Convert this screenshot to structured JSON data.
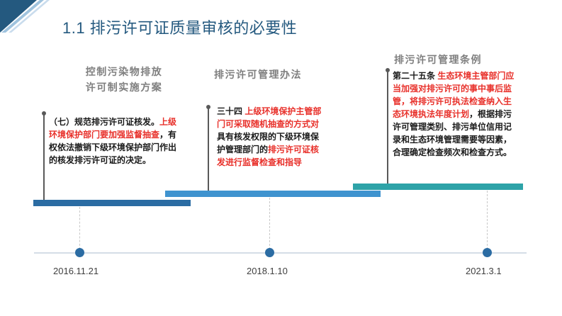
{
  "slide": {
    "title": "1.1 排污许可证质量审核的必要性"
  },
  "items": [
    {
      "heading_line1": "控制污染物排放",
      "heading_line2": "许可制实施方案",
      "parts": [
        {
          "text": "（七）规范排污许可证核发。",
          "highlight": false
        },
        {
          "text": "上级环境保护部门要加强监督抽查",
          "highlight": true
        },
        {
          "text": "，有权依法撤销下级环境保护部门作出的核发排污许可证的决定。",
          "highlight": false
        }
      ],
      "date": "2016.11.21"
    },
    {
      "heading": "排污许可管理办法",
      "parts": [
        {
          "text": "三十四 ",
          "highlight": false
        },
        {
          "text": "上级环境保护主管部门可采取随机抽查的方式对",
          "highlight": true
        },
        {
          "text": "具有核发权限的下级环境保护管理部门的",
          "highlight": false
        },
        {
          "text": "排污许可证核发进行监督检查和指导",
          "highlight": true
        }
      ],
      "date": "2018.1.10"
    },
    {
      "heading": "排污许可管理条例",
      "parts": [
        {
          "text": "第二十五条 ",
          "highlight": false
        },
        {
          "text": "生态环境主管部门应当加强对排污许可的事中事后监管，将排污许可执法检查纳入生态环境执法年度计划",
          "highlight": true
        },
        {
          "text": "，根据排污许可管理类别、排污单位信用记录和生态环境管理需要等因素，合理确定检查频次和检查方式。",
          "highlight": false
        }
      ],
      "date": "2021.3.1"
    }
  ],
  "colors": {
    "title": "#24597f",
    "highlight": "#e8302a",
    "band1": "#2b6ca3",
    "band2": "#3f93cf",
    "band3": "#2ea3a8",
    "node": "#2b6ca3",
    "corner_dark": "#24597f",
    "corner_light": "#9fc3de"
  }
}
